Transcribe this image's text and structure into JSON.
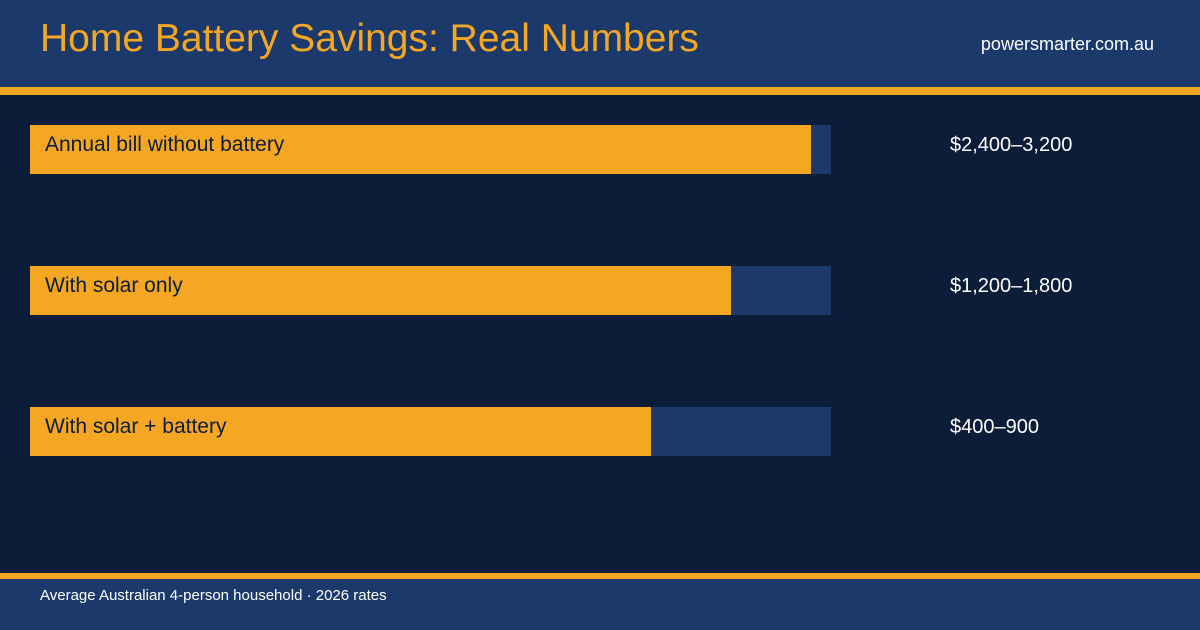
{
  "header": {
    "title": "Home Battery Savings: Real Numbers",
    "site": "powersmarter.com.au"
  },
  "footer": {
    "note": "Average Australian 4-person household · 2026 rates"
  },
  "colors": {
    "accent": "#f5a623",
    "panel": "#1b3a6b",
    "background": "#0b1d38",
    "text": "#ffffff"
  },
  "chart_data": {
    "type": "bar",
    "orientation": "horizontal",
    "categories": [
      "Annual bill without battery",
      "With solar only",
      "With solar + battery"
    ],
    "fill_fraction": [
      0.975,
      0.875,
      0.775
    ],
    "values": [
      "$2,400–3,200",
      "$1,200–1,800",
      "$400–900"
    ],
    "title": "",
    "xlabel": "",
    "ylabel": "",
    "grid": false,
    "legend": "none"
  }
}
